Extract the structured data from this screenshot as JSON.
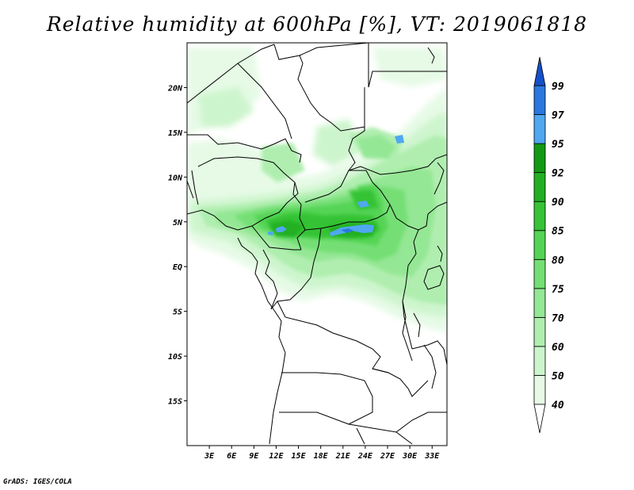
{
  "title": "Relative humidity at 600hPa [%], VT: 2019061818",
  "credit": "GrADS: IGES/COLA",
  "map": {
    "lat_range": [
      -20,
      25
    ],
    "lon_range": [
      0,
      35
    ],
    "lat_ticks": [
      {
        "value": 20,
        "label": "20N"
      },
      {
        "value": 15,
        "label": "15N"
      },
      {
        "value": 10,
        "label": "10N"
      },
      {
        "value": 5,
        "label": "5N"
      },
      {
        "value": 0,
        "label": "EQ"
      },
      {
        "value": -5,
        "label": "5S"
      },
      {
        "value": -10,
        "label": "10S"
      },
      {
        "value": -15,
        "label": "15S"
      }
    ],
    "lon_ticks": [
      {
        "value": 3,
        "label": "3E"
      },
      {
        "value": 6,
        "label": "6E"
      },
      {
        "value": 9,
        "label": "9E"
      },
      {
        "value": 12,
        "label": "12E"
      },
      {
        "value": 15,
        "label": "15E"
      },
      {
        "value": 18,
        "label": "18E"
      },
      {
        "value": 21,
        "label": "21E"
      },
      {
        "value": 24,
        "label": "24E"
      },
      {
        "value": 27,
        "label": "27E"
      },
      {
        "value": 30,
        "label": "30E"
      },
      {
        "value": 33,
        "label": "33E"
      }
    ]
  },
  "colorbar": {
    "levels": [
      "40",
      "50",
      "60",
      "70",
      "75",
      "80",
      "85",
      "90",
      "92",
      "95",
      "97",
      "99"
    ],
    "colors": [
      "#ffffff",
      "#e6fae6",
      "#cdf5cd",
      "#b0eeb0",
      "#94e794",
      "#74df74",
      "#54d454",
      "#36c336",
      "#22b022",
      "#129a12",
      "#4fa8f0",
      "#2a78e0",
      "#1450c8"
    ]
  }
}
